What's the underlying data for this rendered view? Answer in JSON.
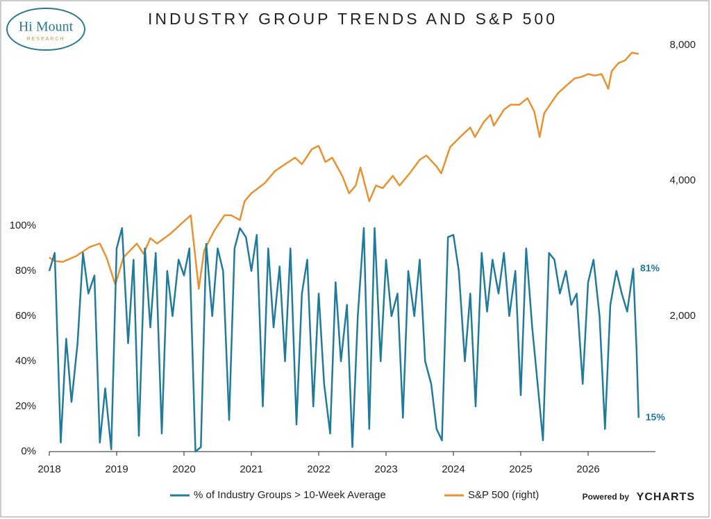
{
  "chart_data": {
    "type": "line",
    "title": "INDUSTRY GROUP TRENDS AND S&P 500",
    "logo": {
      "name": "Hi Mount",
      "sub": "RESEARCH"
    },
    "credit": {
      "prefix": "Powered by",
      "brand": "YCHARTS"
    },
    "xlim": [
      2018,
      2027
    ],
    "xticks": [
      2018,
      2019,
      2020,
      2021,
      2022,
      2023,
      2024,
      2025,
      2026
    ],
    "ylim": [
      0,
      180
    ],
    "yticks": [
      {
        "value": 0,
        "label": "0%"
      },
      {
        "value": 20,
        "label": "20%"
      },
      {
        "value": 40,
        "label": "40%"
      },
      {
        "value": 60,
        "label": "60%"
      },
      {
        "value": 80,
        "label": "80%"
      },
      {
        "value": 100,
        "label": "100%"
      }
    ],
    "y2lim": [
      1000,
      8000
    ],
    "y2log": true,
    "y2ticks": [
      {
        "value": 2000,
        "label": "2,000"
      },
      {
        "value": 4000,
        "label": "4,000"
      },
      {
        "value": 8000,
        "label": "8,000"
      }
    ],
    "annotations": [
      {
        "x": 2026.67,
        "y": 81,
        "label": "81%"
      },
      {
        "x": 2026.75,
        "y": 15,
        "label": "15%"
      }
    ],
    "series": [
      {
        "name": "% of Industry Groups > 10-Week Average",
        "color": "#1f7a9c",
        "x": [
          2018.0,
          2018.08,
          2018.17,
          2018.25,
          2018.33,
          2018.42,
          2018.5,
          2018.58,
          2018.67,
          2018.75,
          2018.83,
          2018.92,
          2019.0,
          2019.08,
          2019.17,
          2019.25,
          2019.33,
          2019.42,
          2019.5,
          2019.58,
          2019.67,
          2019.75,
          2019.83,
          2019.92,
          2020.0,
          2020.08,
          2020.17,
          2020.25,
          2020.33,
          2020.42,
          2020.5,
          2020.58,
          2020.67,
          2020.75,
          2020.83,
          2020.92,
          2021.0,
          2021.08,
          2021.17,
          2021.25,
          2021.33,
          2021.42,
          2021.5,
          2021.58,
          2021.67,
          2021.75,
          2021.83,
          2021.92,
          2022.0,
          2022.08,
          2022.17,
          2022.25,
          2022.33,
          2022.42,
          2022.5,
          2022.58,
          2022.67,
          2022.75,
          2022.83,
          2022.92,
          2023.0,
          2023.08,
          2023.17,
          2023.25,
          2023.33,
          2023.42,
          2023.5,
          2023.58,
          2023.67,
          2023.75,
          2023.83,
          2023.92,
          2024.0,
          2024.08,
          2024.17,
          2024.25,
          2024.33,
          2024.42,
          2024.5,
          2024.58,
          2024.67,
          2024.75,
          2024.83,
          2024.92,
          2025.0,
          2025.08,
          2025.17,
          2025.25,
          2025.33,
          2025.42,
          2025.5,
          2025.58,
          2025.67,
          2025.75,
          2025.83,
          2025.92,
          2026.0,
          2026.08,
          2026.17,
          2026.25,
          2026.33,
          2026.42,
          2026.5,
          2026.58,
          2026.67,
          2026.72,
          2026.75
        ],
        "values": [
          80,
          88,
          4,
          50,
          22,
          48,
          88,
          70,
          78,
          4,
          28,
          1,
          90,
          99,
          48,
          85,
          7,
          90,
          55,
          88,
          8,
          80,
          60,
          85,
          78,
          90,
          0,
          2,
          92,
          60,
          90,
          80,
          14,
          90,
          99,
          95,
          80,
          96,
          20,
          90,
          55,
          82,
          40,
          90,
          12,
          70,
          85,
          20,
          70,
          30,
          8,
          75,
          40,
          65,
          2,
          60,
          99,
          10,
          99,
          40,
          85,
          60,
          70,
          15,
          80,
          60,
          85,
          40,
          30,
          10,
          5,
          95,
          96,
          80,
          40,
          70,
          20,
          88,
          62,
          85,
          70,
          88,
          60,
          80,
          25,
          90,
          55,
          30,
          5,
          88,
          85,
          70,
          80,
          65,
          70,
          30,
          75,
          85,
          60,
          10,
          65,
          80,
          70,
          62,
          81,
          45,
          15
        ]
      },
      {
        "name": "S&P 500 (right)",
        "color": "#e8912e",
        "axis": "y2",
        "x": [
          2018.0,
          2018.08,
          2018.2,
          2018.4,
          2018.6,
          2018.75,
          2018.85,
          2018.98,
          2019.1,
          2019.3,
          2019.4,
          2019.5,
          2019.6,
          2019.8,
          2019.98,
          2020.1,
          2020.22,
          2020.3,
          2020.45,
          2020.6,
          2020.7,
          2020.83,
          2020.9,
          2021.0,
          2021.2,
          2021.35,
          2021.5,
          2021.65,
          2021.75,
          2021.9,
          2022.0,
          2022.1,
          2022.2,
          2022.35,
          2022.45,
          2022.55,
          2022.62,
          2022.75,
          2022.85,
          2022.95,
          2023.1,
          2023.2,
          2023.35,
          2023.5,
          2023.6,
          2023.75,
          2023.82,
          2023.95,
          2024.1,
          2024.25,
          2024.32,
          2024.45,
          2024.55,
          2024.6,
          2024.75,
          2024.85,
          2024.98,
          2025.1,
          2025.2,
          2025.28,
          2025.35,
          2025.45,
          2025.55,
          2025.7,
          2025.8,
          2025.9,
          2026.0,
          2026.1,
          2026.2,
          2026.3,
          2026.35,
          2026.45,
          2026.55,
          2026.65,
          2026.75
        ],
        "values": [
          2700,
          2650,
          2640,
          2720,
          2850,
          2900,
          2700,
          2350,
          2700,
          2900,
          2750,
          2980,
          2900,
          3050,
          3230,
          3350,
          2300,
          2800,
          3100,
          3350,
          3350,
          3270,
          3600,
          3750,
          3950,
          4200,
          4350,
          4500,
          4350,
          4700,
          4780,
          4400,
          4500,
          4100,
          3750,
          3900,
          4280,
          3600,
          3900,
          3850,
          4100,
          3900,
          4150,
          4450,
          4550,
          4300,
          4150,
          4750,
          5000,
          5250,
          5000,
          5400,
          5600,
          5300,
          5750,
          5900,
          5900,
          6100,
          5700,
          5000,
          5650,
          5950,
          6250,
          6550,
          6750,
          6800,
          6900,
          6850,
          6900,
          6400,
          7000,
          7300,
          7400,
          7700,
          7650
        ]
      }
    ]
  }
}
